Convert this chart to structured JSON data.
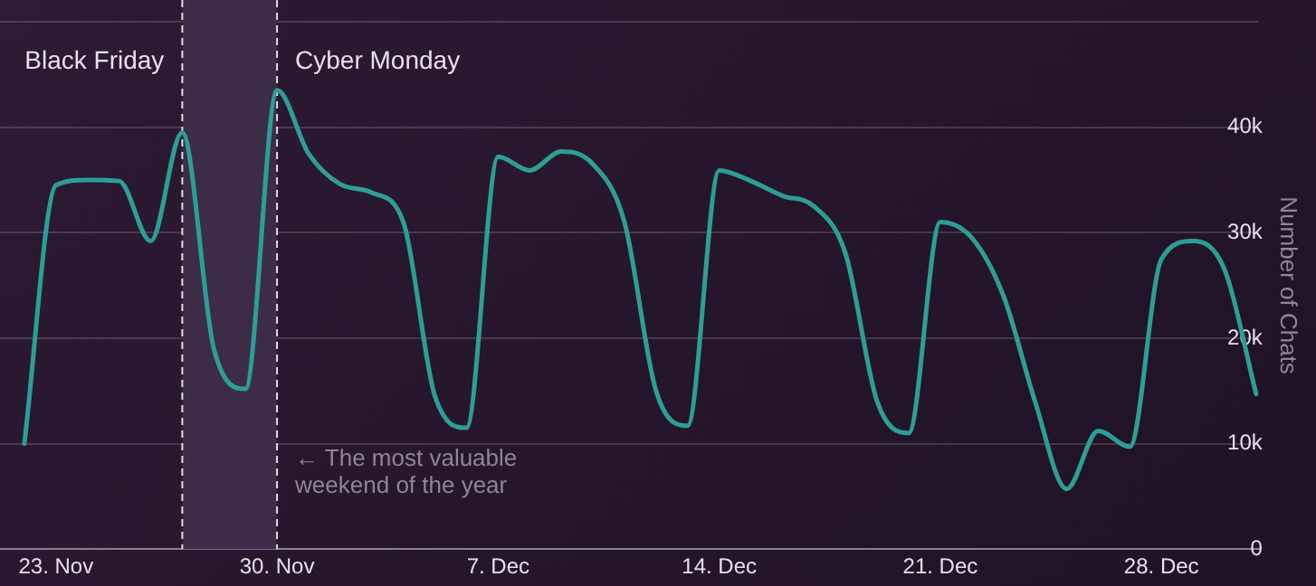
{
  "chart_data": {
    "type": "line",
    "ylabel": "Number of Chats",
    "x": [
      "--11-22",
      "--11-23",
      "--11-24",
      "--11-25",
      "--11-26",
      "--11-27",
      "--11-28",
      "--11-29",
      "--11-30",
      "--12-01",
      "--12-02",
      "--12-03",
      "--12-04",
      "--12-05",
      "--12-06",
      "--12-07",
      "--12-08",
      "--12-09",
      "--12-10",
      "--12-11",
      "--12-12",
      "--12-13",
      "--12-14",
      "--12-15",
      "--12-16",
      "--12-17",
      "--12-18",
      "--12-19",
      "--12-20",
      "--12-21",
      "--12-22",
      "--12-23",
      "--12-24",
      "--12-25",
      "--12-26",
      "--12-27",
      "--12-28",
      "--12-29",
      "--12-30",
      "--12-31"
    ],
    "series": [
      {
        "color": "#2c9e96",
        "values": [
          10000,
          34500,
          35000,
          34900,
          29200,
          39500,
          19000,
          15200,
          43500,
          37500,
          34600,
          33800,
          31000,
          14500,
          11500,
          37200,
          35900,
          37700,
          36500,
          31000,
          15000,
          11700,
          35900,
          34900,
          33500,
          32500,
          28000,
          14000,
          11000,
          31000,
          29500,
          24000,
          14000,
          5700,
          11200,
          9700,
          27500,
          29200,
          26500,
          14700
        ]
      }
    ],
    "xlim": [
      "--11-21T05:30",
      "--12-31T02:00"
    ],
    "xticks": [
      {
        "value": "--11-23",
        "label": "23. Nov"
      },
      {
        "value": "--11-30",
        "label": "30. Nov"
      },
      {
        "value": "--12-07",
        "label": "7. Dec"
      },
      {
        "value": "--12-14",
        "label": "14. Dec"
      },
      {
        "value": "--12-21",
        "label": "21. Dec"
      },
      {
        "value": "--12-28",
        "label": "28. Dec"
      }
    ],
    "ylim": [
      0,
      50000
    ],
    "yticks": [
      0,
      {
        "value": 10000,
        "label": "10k"
      },
      {
        "value": 20000,
        "label": "20k"
      },
      {
        "value": 30000,
        "label": "30k"
      },
      {
        "value": 40000,
        "label": "40k"
      },
      {
        "value": 50000,
        "label": null
      }
    ],
    "grid": "y",
    "legend": false,
    "marker": "none",
    "line_style": "solid",
    "bands": [
      {
        "axis": "x",
        "from": "--11-27",
        "to": "--11-30",
        "label": "← The most valuable weekend of the year",
        "color": "#3d2c48"
      }
    ],
    "ref_lines": [
      {
        "axis": "x",
        "value": "--11-27",
        "label": "Black Friday",
        "line_style": "dashed",
        "color": "#dddddd"
      },
      {
        "axis": "x",
        "value": "--11-30",
        "label": "Cyber Monday",
        "line_style": "dashed",
        "color": "#dddddd"
      }
    ]
  }
}
